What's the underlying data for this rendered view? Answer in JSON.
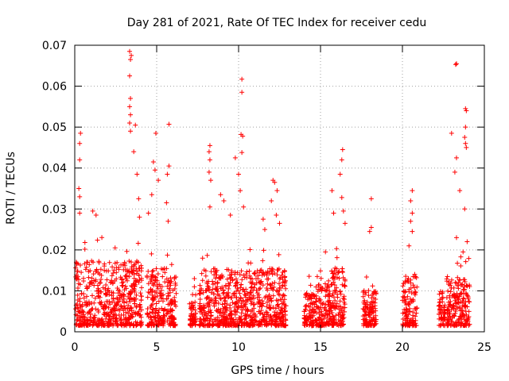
{
  "chart_data": {
    "type": "scatter",
    "title": "Day 281 of 2021, Rate Of TEC Index for receiver cedu",
    "xlabel": "GPS time / hours",
    "ylabel": "ROTI / TECUs",
    "xlim": [
      0,
      25
    ],
    "ylim": [
      0,
      0.07
    ],
    "x_ticks": [
      "0",
      "5",
      "10",
      "15",
      "20",
      "25"
    ],
    "y_ticks": [
      "0",
      "0.01",
      "0.02",
      "0.03",
      "0.04",
      "0.05",
      "0.06",
      "0.07"
    ],
    "grid": true,
    "marker": "+",
    "color": "#ff0000",
    "observation_windows": [
      {
        "x": [
          0.05,
          4.1
        ],
        "typical_max": 0.016
      },
      {
        "x": [
          4.4,
          5.5
        ],
        "typical_max": 0.014
      },
      {
        "x": [
          5.6,
          6.2
        ],
        "typical_max": 0.012
      },
      {
        "x": [
          7.0,
          7.4
        ],
        "typical_max": 0.006
      },
      {
        "x": [
          7.6,
          11.1
        ],
        "typical_max": 0.014
      },
      {
        "x": [
          11.1,
          12.9
        ],
        "typical_max": 0.014
      },
      {
        "x": [
          14.0,
          14.8
        ],
        "typical_max": 0.008
      },
      {
        "x": [
          14.8,
          15.6
        ],
        "typical_max": 0.011
      },
      {
        "x": [
          15.6,
          16.5
        ],
        "typical_max": 0.014
      },
      {
        "x": [
          17.6,
          18.4
        ],
        "typical_max": 0.009
      },
      {
        "x": [
          20.0,
          20.9
        ],
        "typical_max": 0.012
      },
      {
        "x": [
          22.2,
          22.6
        ],
        "typical_max": 0.009
      },
      {
        "x": [
          22.7,
          24.1
        ],
        "typical_max": 0.012
      }
    ],
    "notable_points": [
      {
        "x": 0.35,
        "y": 0.0485
      },
      {
        "x": 0.3,
        "y": 0.046
      },
      {
        "x": 0.3,
        "y": 0.042
      },
      {
        "x": 0.25,
        "y": 0.035
      },
      {
        "x": 0.3,
        "y": 0.033
      },
      {
        "x": 0.3,
        "y": 0.029
      },
      {
        "x": 1.1,
        "y": 0.0295
      },
      {
        "x": 1.3,
        "y": 0.0285
      },
      {
        "x": 3.35,
        "y": 0.0685
      },
      {
        "x": 3.45,
        "y": 0.0675
      },
      {
        "x": 3.4,
        "y": 0.0665
      },
      {
        "x": 3.35,
        "y": 0.0625
      },
      {
        "x": 3.4,
        "y": 0.057
      },
      {
        "x": 3.35,
        "y": 0.055
      },
      {
        "x": 3.4,
        "y": 0.053
      },
      {
        "x": 3.35,
        "y": 0.051
      },
      {
        "x": 3.4,
        "y": 0.049
      },
      {
        "x": 3.7,
        "y": 0.0505
      },
      {
        "x": 3.6,
        "y": 0.044
      },
      {
        "x": 3.8,
        "y": 0.0385
      },
      {
        "x": 3.9,
        "y": 0.0325
      },
      {
        "x": 3.95,
        "y": 0.028
      },
      {
        "x": 4.95,
        "y": 0.0485
      },
      {
        "x": 4.8,
        "y": 0.0415
      },
      {
        "x": 4.9,
        "y": 0.0395
      },
      {
        "x": 5.1,
        "y": 0.037
      },
      {
        "x": 4.7,
        "y": 0.0335
      },
      {
        "x": 4.5,
        "y": 0.029
      },
      {
        "x": 5.75,
        "y": 0.0507
      },
      {
        "x": 5.75,
        "y": 0.0405
      },
      {
        "x": 5.65,
        "y": 0.0385
      },
      {
        "x": 5.6,
        "y": 0.0315
      },
      {
        "x": 5.7,
        "y": 0.027
      },
      {
        "x": 7.3,
        "y": 0.013
      },
      {
        "x": 7.3,
        "y": 0.011
      },
      {
        "x": 7.2,
        "y": 0.0065
      },
      {
        "x": 7.3,
        "y": 0.003
      },
      {
        "x": 8.25,
        "y": 0.0455
      },
      {
        "x": 8.2,
        "y": 0.044
      },
      {
        "x": 8.25,
        "y": 0.042
      },
      {
        "x": 8.2,
        "y": 0.039
      },
      {
        "x": 8.3,
        "y": 0.037
      },
      {
        "x": 8.25,
        "y": 0.0305
      },
      {
        "x": 8.9,
        "y": 0.0335
      },
      {
        "x": 9.1,
        "y": 0.032
      },
      {
        "x": 9.5,
        "y": 0.0285
      },
      {
        "x": 9.8,
        "y": 0.0425
      },
      {
        "x": 10.2,
        "y": 0.0617
      },
      {
        "x": 10.2,
        "y": 0.0585
      },
      {
        "x": 10.15,
        "y": 0.0482
      },
      {
        "x": 10.25,
        "y": 0.0478
      },
      {
        "x": 10.2,
        "y": 0.0438
      },
      {
        "x": 10.0,
        "y": 0.0385
      },
      {
        "x": 10.1,
        "y": 0.0345
      },
      {
        "x": 10.3,
        "y": 0.0305
      },
      {
        "x": 11.5,
        "y": 0.0275
      },
      {
        "x": 11.6,
        "y": 0.025
      },
      {
        "x": 12.1,
        "y": 0.037
      },
      {
        "x": 12.2,
        "y": 0.0365
      },
      {
        "x": 12.35,
        "y": 0.0345
      },
      {
        "x": 12.0,
        "y": 0.032
      },
      {
        "x": 12.3,
        "y": 0.0285
      },
      {
        "x": 12.5,
        "y": 0.0265
      },
      {
        "x": 15.3,
        "y": 0.0195
      },
      {
        "x": 16.35,
        "y": 0.0445
      },
      {
        "x": 16.3,
        "y": 0.042
      },
      {
        "x": 16.2,
        "y": 0.0385
      },
      {
        "x": 16.3,
        "y": 0.0328
      },
      {
        "x": 15.7,
        "y": 0.0345
      },
      {
        "x": 15.8,
        "y": 0.029
      },
      {
        "x": 16.4,
        "y": 0.0295
      },
      {
        "x": 16.5,
        "y": 0.0265
      },
      {
        "x": 18.1,
        "y": 0.0325
      },
      {
        "x": 18.1,
        "y": 0.0255
      },
      {
        "x": 18.0,
        "y": 0.0245
      },
      {
        "x": 20.6,
        "y": 0.0345
      },
      {
        "x": 20.5,
        "y": 0.032
      },
      {
        "x": 20.6,
        "y": 0.029
      },
      {
        "x": 20.5,
        "y": 0.027
      },
      {
        "x": 20.6,
        "y": 0.0245
      },
      {
        "x": 20.4,
        "y": 0.021
      },
      {
        "x": 23.25,
        "y": 0.0653
      },
      {
        "x": 23.3,
        "y": 0.0655
      },
      {
        "x": 23.0,
        "y": 0.0485
      },
      {
        "x": 23.3,
        "y": 0.0425
      },
      {
        "x": 23.2,
        "y": 0.039
      },
      {
        "x": 23.5,
        "y": 0.0345
      },
      {
        "x": 23.3,
        "y": 0.023
      },
      {
        "x": 23.85,
        "y": 0.0545
      },
      {
        "x": 23.9,
        "y": 0.054
      },
      {
        "x": 23.85,
        "y": 0.05
      },
      {
        "x": 23.8,
        "y": 0.0475
      },
      {
        "x": 23.85,
        "y": 0.046
      },
      {
        "x": 23.9,
        "y": 0.045
      },
      {
        "x": 23.8,
        "y": 0.03
      },
      {
        "x": 23.95,
        "y": 0.022
      },
      {
        "x": 23.7,
        "y": 0.0195
      }
    ]
  }
}
